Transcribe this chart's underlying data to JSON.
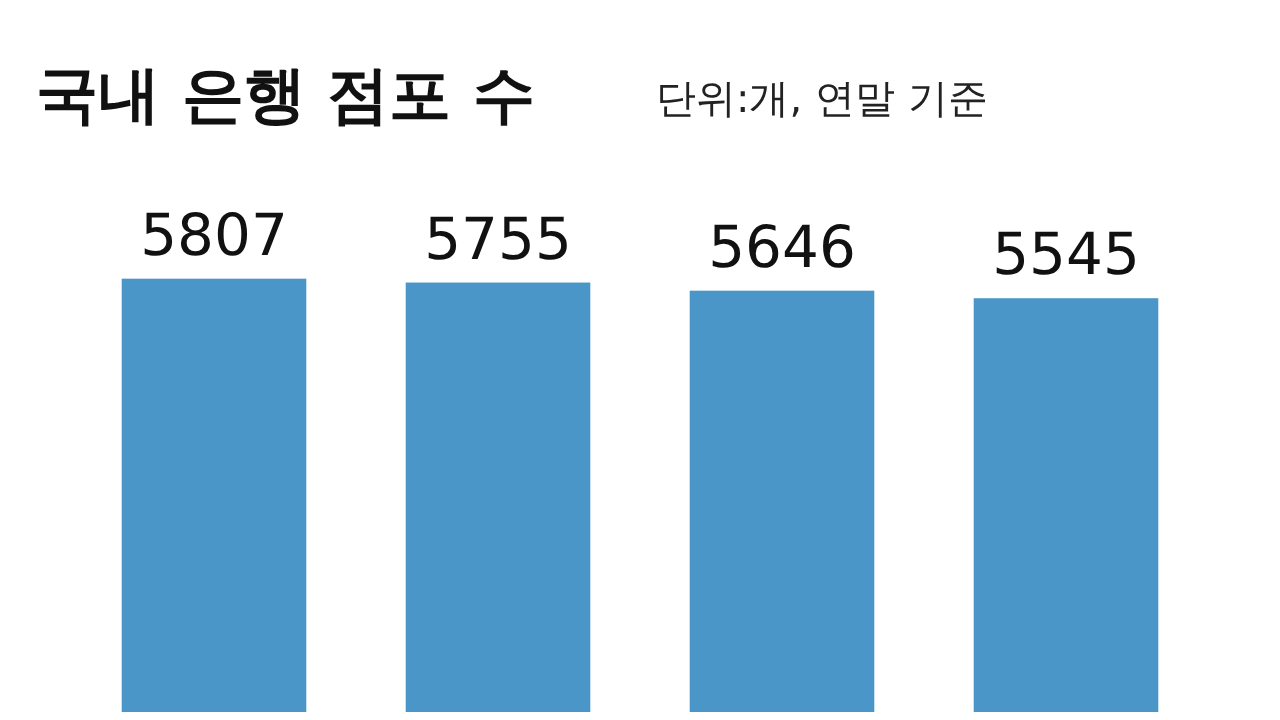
{
  "chart_data": {
    "type": "bar",
    "title": "국내 은행 점포 수",
    "subtitle": "단위:개, 연말 기준",
    "categories": [
      null,
      null,
      null,
      null
    ],
    "values": [
      5807,
      5755,
      5646,
      5545
    ],
    "color": "#4b96c8",
    "data_labels": true
  }
}
